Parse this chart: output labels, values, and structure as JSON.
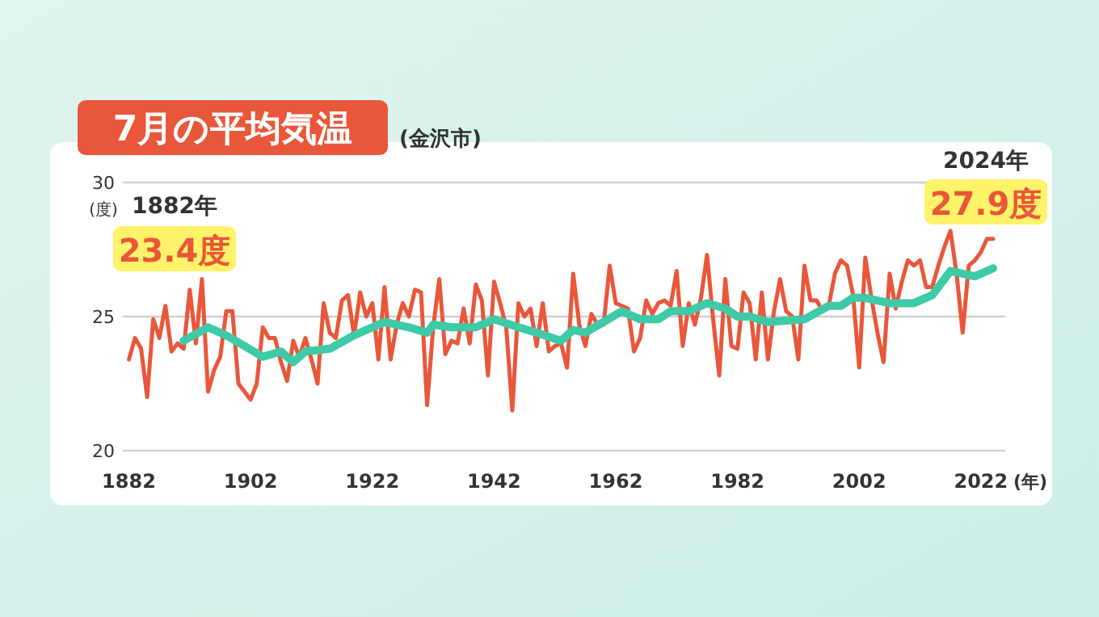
{
  "chart_data": {
    "type": "line",
    "title": "7月の平均気温",
    "subtitle": "(金沢市)",
    "ylabel": "(度)",
    "xlabel": "(年)",
    "xlim": [
      1881,
      2026
    ],
    "xticks": [
      1882,
      1902,
      1922,
      1942,
      1962,
      1982,
      2002,
      2022
    ],
    "ylim": [
      20,
      30
    ],
    "yticks": [
      20,
      25,
      30
    ],
    "grid": "y",
    "marker": "none",
    "line_style": "solid",
    "series": [
      {
        "color": "#e9573a",
        "x": [
          1882,
          1883,
          1884,
          1885,
          1886,
          1887,
          1888,
          1889,
          1890,
          1891,
          1892,
          1893,
          1894,
          1895,
          1896,
          1897,
          1898,
          1899,
          1900,
          1901,
          1902,
          1903,
          1904,
          1905,
          1906,
          1907,
          1908,
          1909,
          1910,
          1911,
          1912,
          1913,
          1914,
          1915,
          1916,
          1917,
          1918,
          1919,
          1920,
          1921,
          1922,
          1923,
          1924,
          1925,
          1926,
          1927,
          1928,
          1929,
          1930,
          1931,
          1932,
          1933,
          1934,
          1935,
          1936,
          1937,
          1938,
          1939,
          1940,
          1941,
          1942,
          1943,
          1944,
          1945,
          1946,
          1947,
          1948,
          1949,
          1950,
          1951,
          1952,
          1953,
          1954,
          1955,
          1956,
          1957,
          1958,
          1959,
          1960,
          1961,
          1962,
          1963,
          1964,
          1965,
          1966,
          1967,
          1968,
          1969,
          1970,
          1971,
          1972,
          1973,
          1974,
          1975,
          1976,
          1977,
          1978,
          1979,
          1980,
          1981,
          1982,
          1983,
          1984,
          1985,
          1986,
          1987,
          1988,
          1989,
          1990,
          1991,
          1992,
          1993,
          1994,
          1995,
          1996,
          1997,
          1998,
          1999,
          2000,
          2001,
          2002,
          2003,
          2004,
          2005,
          2006,
          2007,
          2008,
          2009,
          2010,
          2011,
          2012,
          2013,
          2014,
          2015,
          2016,
          2017,
          2018,
          2019,
          2020,
          2021,
          2022,
          2023,
          2024
        ],
        "values": [
          23.4,
          24.2,
          23.8,
          22.0,
          24.9,
          24.2,
          25.4,
          23.7,
          24.0,
          23.8,
          26.0,
          24.0,
          26.4,
          22.2,
          23.0,
          23.5,
          25.2,
          25.2,
          22.5,
          22.2,
          21.9,
          22.5,
          24.6,
          24.2,
          24.2,
          23.3,
          22.6,
          24.1,
          23.5,
          24.2,
          23.4,
          22.5,
          25.5,
          24.4,
          24.2,
          25.6,
          25.8,
          24.3,
          25.9,
          25.0,
          25.5,
          23.4,
          26.1,
          23.4,
          24.7,
          25.5,
          25.0,
          26.0,
          25.9,
          21.7,
          24.6,
          26.4,
          23.6,
          24.1,
          24.0,
          25.3,
          24.0,
          26.2,
          25.6,
          22.8,
          26.3,
          25.5,
          24.6,
          21.5,
          25.5,
          25.0,
          25.3,
          23.9,
          25.5,
          23.7,
          23.9,
          24.0,
          23.1,
          26.6,
          24.7,
          23.9,
          25.1,
          24.7,
          24.7,
          26.9,
          25.5,
          25.4,
          25.3,
          23.7,
          24.2,
          25.6,
          25.1,
          25.5,
          25.6,
          25.4,
          26.7,
          23.9,
          25.5,
          24.7,
          25.7,
          27.3,
          24.9,
          22.8,
          26.4,
          23.9,
          23.8,
          25.9,
          25.5,
          23.4,
          25.9,
          23.4,
          25.2,
          26.4,
          25.2,
          25.0,
          23.4,
          26.9,
          25.6,
          25.6,
          25.2,
          25.4,
          26.6,
          27.1,
          26.9,
          25.8,
          23.1,
          27.2,
          25.7,
          24.4,
          23.3,
          26.6,
          25.3,
          26.3,
          27.1,
          26.9,
          27.1,
          26.1,
          26.1,
          26.9,
          27.6,
          28.2,
          26.6,
          24.4,
          26.9,
          27.1,
          27.4,
          27.9,
          27.9
        ]
      },
      {
        "color": "#3ecaa6",
        "x": [
          1891,
          1895,
          1898,
          1904,
          1907,
          1909,
          1911,
          1915,
          1919,
          1924,
          1928,
          1931,
          1932,
          1935,
          1939,
          1942,
          1946,
          1949,
          1953,
          1955,
          1957,
          1960,
          1963,
          1966,
          1969,
          1971,
          1974,
          1977,
          1980,
          1982,
          1984,
          1987,
          1993,
          1997,
          1999,
          2001,
          2003,
          2007,
          2011,
          2014,
          2017,
          2019,
          2021,
          2024
        ],
        "values": [
          24.1,
          24.6,
          24.3,
          23.5,
          23.7,
          23.3,
          23.7,
          23.8,
          24.3,
          24.8,
          24.6,
          24.4,
          24.7,
          24.6,
          24.6,
          24.9,
          24.6,
          24.4,
          24.1,
          24.5,
          24.4,
          24.8,
          25.2,
          24.9,
          24.9,
          25.2,
          25.2,
          25.5,
          25.3,
          25.0,
          25.0,
          24.8,
          24.9,
          25.4,
          25.4,
          25.7,
          25.7,
          25.5,
          25.5,
          25.8,
          26.7,
          26.6,
          26.5,
          26.8
        ]
      }
    ],
    "annotations": [
      "1882年",
      "23.4度",
      "2024年",
      "27.9度"
    ]
  }
}
